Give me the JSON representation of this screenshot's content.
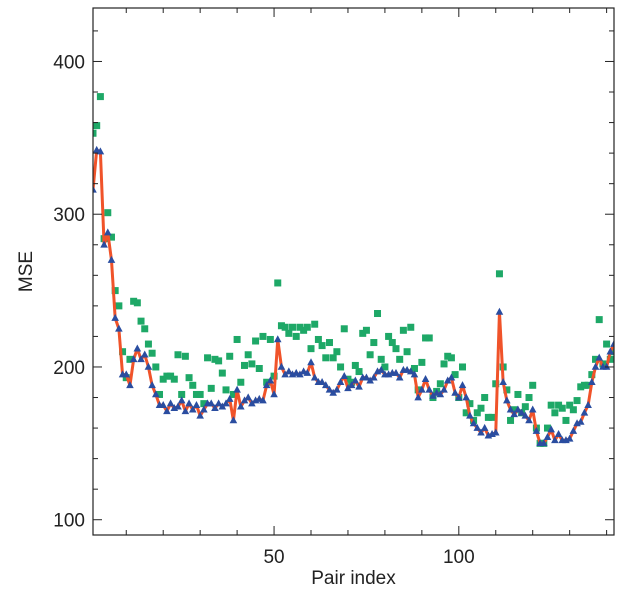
{
  "chart_data": {
    "type": "line",
    "title": "",
    "xlabel": "Pair index",
    "ylabel": "MSE",
    "xlim": [
      1,
      142
    ],
    "ylim": [
      90,
      435
    ],
    "xticks": [
      50,
      100
    ],
    "yticks": [
      100,
      200,
      300,
      400
    ],
    "legend": "none",
    "grid": false,
    "series": [
      {
        "style": "line-with-triangle-markers",
        "line_color": "#f0532a",
        "marker_color": "#2a4da0",
        "x": [
          1,
          2,
          3,
          4,
          5,
          6,
          7,
          8,
          9,
          10,
          11,
          12,
          13,
          14,
          15,
          16,
          17,
          18,
          19,
          20,
          21,
          22,
          23,
          24,
          25,
          26,
          27,
          28,
          29,
          30,
          31,
          32,
          33,
          34,
          35,
          36,
          37,
          38,
          39,
          40,
          41,
          42,
          43,
          44,
          45,
          46,
          47,
          48,
          49,
          50,
          51,
          52,
          53,
          54,
          55,
          56,
          57,
          58,
          59,
          60,
          61,
          62,
          63,
          64,
          65,
          66,
          67,
          68,
          69,
          70,
          71,
          72,
          73,
          74,
          75,
          76,
          77,
          78,
          79,
          80,
          81,
          82,
          83,
          84,
          85,
          86,
          87,
          88,
          89,
          90,
          91,
          92,
          93,
          94,
          95,
          96,
          97,
          98,
          99,
          100,
          101,
          102,
          103,
          104,
          105,
          106,
          107,
          108,
          109,
          110,
          111,
          112,
          113,
          114,
          115,
          116,
          117,
          118,
          119,
          120,
          121,
          122,
          123,
          124,
          125,
          126,
          127,
          128,
          129,
          130,
          131,
          132,
          133,
          134,
          135,
          136,
          137,
          138,
          139,
          140,
          141,
          142
        ],
        "y": [
          316,
          342,
          341,
          280,
          288,
          270,
          232,
          225,
          195,
          195,
          188,
          205,
          212,
          205,
          208,
          200,
          188,
          182,
          175,
          175,
          171,
          176,
          173,
          174,
          178,
          171,
          176,
          172,
          175,
          168,
          172,
          176,
          176,
          173,
          176,
          174,
          176,
          179,
          165,
          185,
          174,
          178,
          180,
          176,
          178,
          179,
          178,
          188,
          191,
          182,
          218,
          200,
          195,
          197,
          195,
          196,
          195,
          197,
          196,
          203,
          193,
          190,
          190,
          188,
          185,
          183,
          185,
          190,
          194,
          186,
          188,
          191,
          187,
          193,
          193,
          191,
          193,
          197,
          198,
          195,
          195,
          196,
          196,
          193,
          198,
          198,
          197,
          195,
          180,
          185,
          192,
          185,
          181,
          183,
          182,
          185,
          191,
          193,
          183,
          180,
          188,
          180,
          168,
          163,
          160,
          157,
          160,
          155,
          156,
          157,
          236,
          190,
          178,
          172,
          169,
          172,
          170,
          168,
          165,
          172,
          158,
          150,
          150,
          154,
          159,
          152,
          156,
          152,
          152,
          153,
          158,
          163,
          164,
          170,
          175,
          190,
          200,
          206,
          200,
          200,
          210,
          215
        ]
      },
      {
        "style": "square-markers",
        "marker_color": "#1ea867",
        "x": [
          1,
          2,
          3,
          4,
          5,
          6,
          7,
          8,
          9,
          10,
          11,
          12,
          13,
          14,
          15,
          16,
          17,
          18,
          19,
          20,
          21,
          22,
          23,
          24,
          25,
          26,
          27,
          28,
          29,
          30,
          31,
          32,
          33,
          34,
          35,
          36,
          37,
          38,
          39,
          40,
          41,
          42,
          43,
          44,
          45,
          46,
          47,
          48,
          49,
          50,
          51,
          52,
          53,
          54,
          55,
          56,
          57,
          58,
          59,
          60,
          61,
          62,
          63,
          64,
          65,
          66,
          67,
          68,
          69,
          70,
          71,
          72,
          73,
          74,
          75,
          76,
          77,
          78,
          79,
          80,
          81,
          82,
          83,
          84,
          85,
          86,
          87,
          88,
          89,
          90,
          91,
          92,
          93,
          94,
          95,
          96,
          97,
          98,
          99,
          100,
          101,
          102,
          103,
          104,
          105,
          106,
          107,
          108,
          109,
          110,
          111,
          112,
          113,
          114,
          115,
          116,
          117,
          118,
          119,
          120,
          121,
          122,
          123,
          124,
          125,
          126,
          127,
          128,
          129,
          130,
          131,
          132,
          133,
          134,
          135,
          136,
          137,
          138,
          139,
          140,
          141,
          142
        ],
        "y": [
          353,
          358,
          377,
          284,
          301,
          285,
          250,
          240,
          210,
          193,
          205,
          243,
          242,
          230,
          225,
          215,
          209,
          200,
          182,
          192,
          194,
          194,
          192,
          208,
          182,
          207,
          193,
          188,
          182,
          182,
          176,
          206,
          186,
          205,
          204,
          196,
          185,
          207,
          182,
          218,
          190,
          201,
          208,
          202,
          217,
          199,
          220,
          190,
          218,
          194,
          255,
          227,
          226,
          222,
          226,
          220,
          226,
          224,
          226,
          212,
          228,
          218,
          214,
          206,
          216,
          206,
          210,
          200,
          225,
          192,
          190,
          201,
          197,
          222,
          224,
          208,
          216,
          235,
          205,
          200,
          220,
          216,
          212,
          205,
          224,
          210,
          226,
          199,
          185,
          203,
          219,
          219,
          180,
          184,
          189,
          202,
          207,
          206,
          195,
          180,
          200,
          170,
          176,
          165,
          170,
          173,
          180,
          167,
          167,
          189,
          261,
          200,
          185,
          165,
          172,
          182,
          170,
          174,
          180,
          188,
          160,
          150,
          150,
          160,
          175,
          170,
          175,
          173,
          165,
          175,
          172,
          178,
          187,
          188,
          188,
          195,
          205,
          231,
          202,
          215,
          205,
          210
        ]
      }
    ]
  }
}
